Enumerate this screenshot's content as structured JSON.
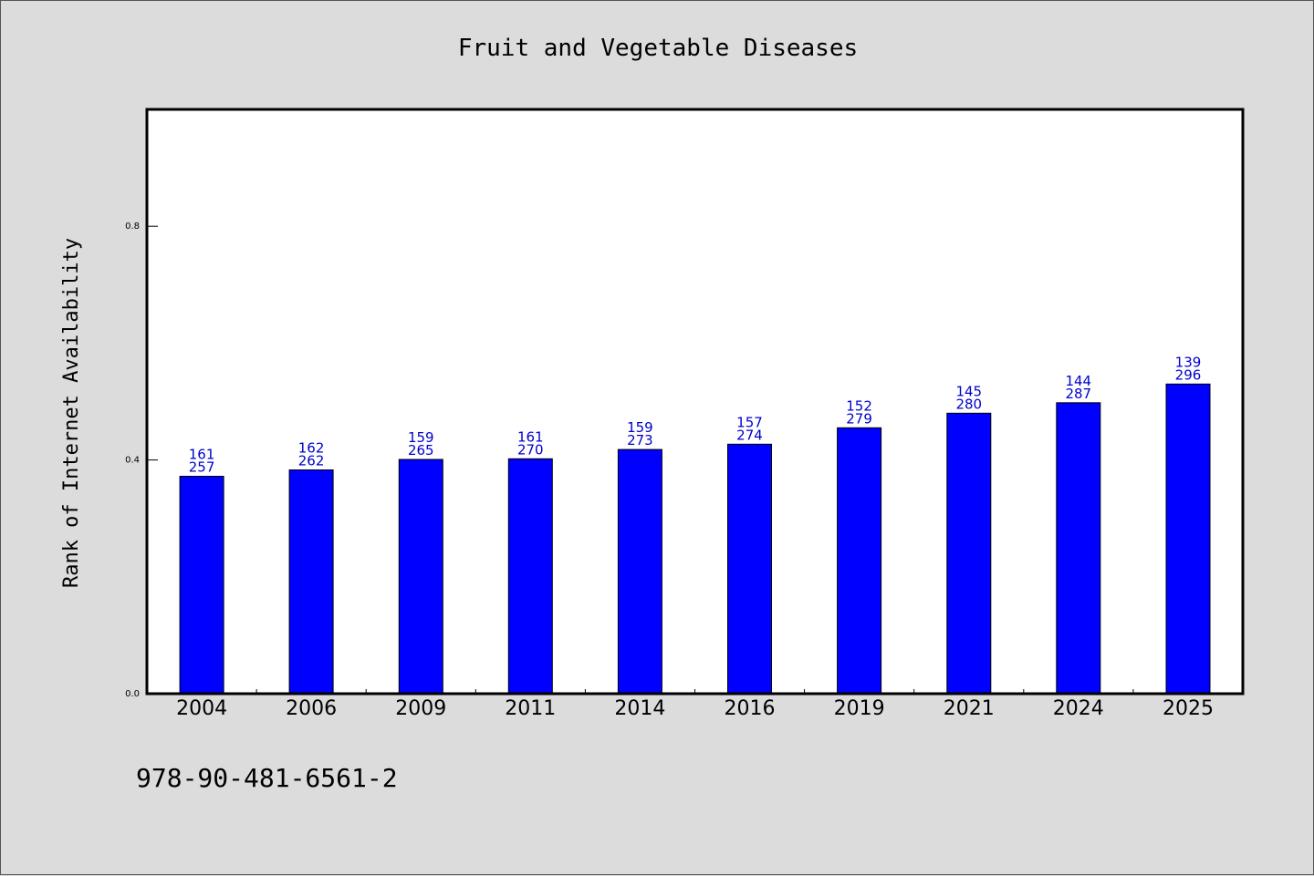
{
  "chart_data": {
    "type": "bar",
    "title": "Fruit and Vegetable Diseases",
    "xlabel": "",
    "ylabel": "Rank of Internet Availability",
    "categories": [
      "2004",
      "2006",
      "2009",
      "2011",
      "2014",
      "2016",
      "2019",
      "2021",
      "2024",
      "2025"
    ],
    "values": [
      0.372,
      0.383,
      0.401,
      0.402,
      0.418,
      0.427,
      0.455,
      0.48,
      0.498,
      0.53
    ],
    "label_top": [
      "161",
      "162",
      "159",
      "161",
      "159",
      "157",
      "152",
      "145",
      "144",
      "139"
    ],
    "label_bottom": [
      "257",
      "262",
      "265",
      "270",
      "273",
      "274",
      "279",
      "280",
      "287",
      "296"
    ],
    "ylim": [
      0.0,
      1.0
    ],
    "yticks": [
      0.0,
      0.4,
      0.8
    ],
    "ytick_labels": [
      "0.0",
      "0.4",
      "0.8"
    ],
    "grid": false,
    "bar_color": "#0000ff",
    "label_color": "#0000cc",
    "background_color": "#dcdcdc",
    "plot_background": "#ffffff"
  },
  "footer_text": "978-90-481-6561-2"
}
